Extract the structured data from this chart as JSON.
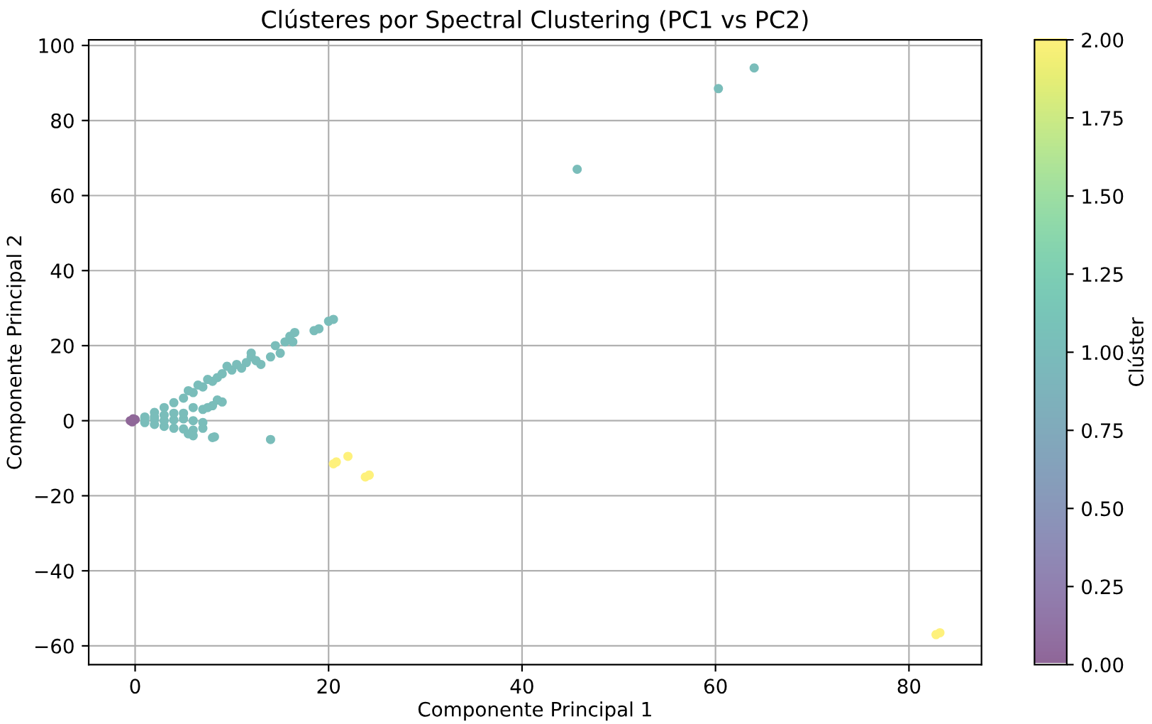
{
  "chart_data": {
    "type": "scatter",
    "title": "Clústeres por Spectral Clustering (PC1 vs PC2)",
    "xlabel": "Componente Principal 1",
    "ylabel": "Componente Principal 2",
    "clabel": "Clúster",
    "x": [
      -0.5,
      -0.3,
      0,
      -0.2,
      1,
      2,
      3,
      4,
      5,
      6,
      7,
      8,
      8.5,
      9,
      10,
      10.5,
      11.5,
      12,
      12,
      12.5,
      13,
      14,
      14.5,
      15,
      15.5,
      16,
      16.5,
      16.3,
      18.5,
      19,
      20,
      20.5,
      11,
      9.5,
      7.5,
      6.5,
      5.5,
      1,
      2,
      3,
      4,
      5,
      6,
      6,
      5.5,
      7,
      7,
      6,
      5,
      4,
      3,
      2,
      7,
      8,
      7.5,
      6,
      5,
      4,
      3,
      2,
      1,
      9,
      8.5,
      45.7,
      60.3,
      64,
      14,
      8,
      8.2,
      20.5,
      20.8,
      22,
      23.8,
      24.2,
      82.8,
      83.2
    ],
    "values": [
      0,
      -0.3,
      0.3,
      0.5,
      1,
      2.2,
      3.5,
      4.8,
      6,
      7.5,
      9,
      10.5,
      11.5,
      12.5,
      13.5,
      15,
      15.5,
      17,
      18,
      16,
      15,
      17,
      20,
      18,
      21,
      22.5,
      23.5,
      21,
      24,
      24.5,
      26.5,
      27,
      14,
      14.5,
      11,
      9.5,
      8,
      -0.5,
      -1,
      -1.5,
      -2,
      -2.2,
      -2.5,
      -4,
      -3.5,
      -2,
      -0.5,
      0,
      0.5,
      0.2,
      0,
      0.3,
      3,
      4,
      3.5,
      3.5,
      2,
      2,
      1.5,
      1,
      0.5,
      5,
      5.5,
      67,
      88.5,
      94,
      -5,
      -4.5,
      -4.3,
      -11.5,
      -11,
      -9.5,
      -15,
      -14.5,
      -57,
      -56.5
    ],
    "cvalues": [
      0,
      0,
      0,
      0,
      1,
      1,
      1,
      1,
      1,
      1,
      1,
      1,
      1,
      1,
      1,
      1,
      1,
      1,
      1,
      1,
      1,
      1,
      1,
      1,
      1,
      1,
      1,
      1,
      1,
      1,
      1,
      1,
      1,
      1,
      1,
      1,
      1,
      1,
      1,
      1,
      1,
      1,
      1,
      1,
      1,
      1,
      1,
      1,
      1,
      1,
      1,
      1,
      1,
      1,
      1,
      1,
      1,
      1,
      1,
      1,
      1,
      1,
      1,
      1,
      1,
      1,
      1,
      1,
      1,
      2,
      2,
      2,
      2,
      2,
      2,
      2
    ],
    "clim": [
      0,
      2
    ],
    "cticks": [
      {
        "value": 0,
        "label": "0.00"
      },
      {
        "value": 0.25,
        "label": "0.25"
      },
      {
        "value": 0.5,
        "label": "0.50"
      },
      {
        "value": 0.75,
        "label": "0.75"
      },
      {
        "value": 1,
        "label": "1.00"
      },
      {
        "value": 1.25,
        "label": "1.25"
      },
      {
        "value": 1.5,
        "label": "1.50"
      },
      {
        "value": 1.75,
        "label": "1.75"
      },
      {
        "value": 2,
        "label": "2.00"
      }
    ],
    "xlim": [
      -4.8,
      87.5
    ],
    "ylim": [
      -65,
      101.5
    ],
    "xticks": [
      0,
      20,
      40,
      60,
      80
    ],
    "yticks": [
      {
        "value": -60,
        "label": "−60"
      },
      {
        "value": -40,
        "label": "−40"
      },
      {
        "value": -20,
        "label": "−20"
      },
      0,
      20,
      40,
      60,
      80,
      100
    ],
    "grid": true,
    "marker": "circle"
  }
}
